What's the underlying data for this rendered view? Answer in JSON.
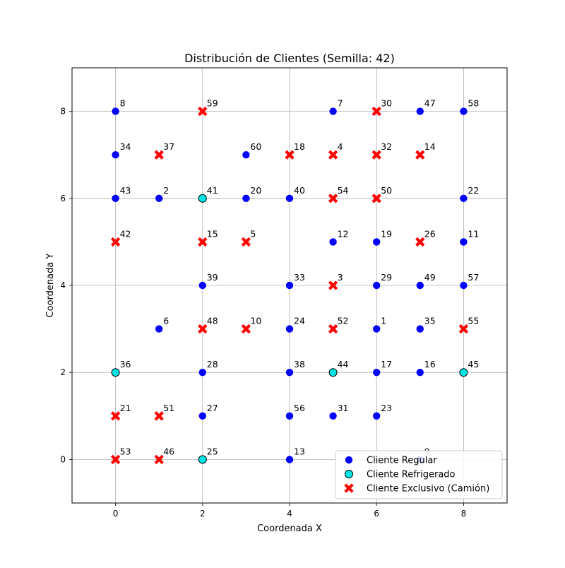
{
  "chart_data": {
    "type": "scatter",
    "title": "Distribución de Clientes (Semilla: 42)",
    "xlabel": "Coordenada X",
    "ylabel": "Coordenada Y",
    "xlim": [
      -1,
      9
    ],
    "ylim": [
      -1,
      9
    ],
    "xticks": [
      "0",
      "2",
      "4",
      "6",
      "8"
    ],
    "yticks": [
      "0",
      "2",
      "4",
      "6",
      "8"
    ],
    "grid": true,
    "legend_position": "lower-right",
    "series": [
      {
        "name": "Cliente Regular",
        "marker": "circle",
        "color": "#0000ff",
        "points": [
          {
            "id": "1",
            "x": 6,
            "y": 3
          },
          {
            "id": "2",
            "x": 1,
            "y": 6
          },
          {
            "id": "6",
            "x": 1,
            "y": 3
          },
          {
            "id": "7",
            "x": 5,
            "y": 8
          },
          {
            "id": "8",
            "x": 0,
            "y": 8
          },
          {
            "id": "9",
            "x": 7,
            "y": 0
          },
          {
            "id": "11",
            "x": 8,
            "y": 5
          },
          {
            "id": "12",
            "x": 5,
            "y": 5
          },
          {
            "id": "13",
            "x": 4,
            "y": 0
          },
          {
            "id": "16",
            "x": 7,
            "y": 2
          },
          {
            "id": "17",
            "x": 6,
            "y": 2
          },
          {
            "id": "19",
            "x": 6,
            "y": 5
          },
          {
            "id": "20",
            "x": 3,
            "y": 6
          },
          {
            "id": "22",
            "x": 8,
            "y": 6
          },
          {
            "id": "23",
            "x": 6,
            "y": 1
          },
          {
            "id": "24",
            "x": 4,
            "y": 3
          },
          {
            "id": "27",
            "x": 2,
            "y": 1
          },
          {
            "id": "28",
            "x": 2,
            "y": 2
          },
          {
            "id": "29",
            "x": 6,
            "y": 4
          },
          {
            "id": "31",
            "x": 5,
            "y": 1
          },
          {
            "id": "33",
            "x": 4,
            "y": 4
          },
          {
            "id": "34",
            "x": 0,
            "y": 7
          },
          {
            "id": "35",
            "x": 7,
            "y": 3
          },
          {
            "id": "38",
            "x": 4,
            "y": 2
          },
          {
            "id": "39",
            "x": 2,
            "y": 4
          },
          {
            "id": "40",
            "x": 4,
            "y": 6
          },
          {
            "id": "43",
            "x": 0,
            "y": 6
          },
          {
            "id": "47",
            "x": 7,
            "y": 8
          },
          {
            "id": "49",
            "x": 7,
            "y": 4
          },
          {
            "id": "56",
            "x": 4,
            "y": 1
          },
          {
            "id": "57",
            "x": 8,
            "y": 4
          },
          {
            "id": "58",
            "x": 8,
            "y": 8
          },
          {
            "id": "60",
            "x": 3,
            "y": 7
          }
        ]
      },
      {
        "name": "Cliente Refrigerado",
        "marker": "circle-outlined",
        "color": "#00e5e5",
        "points": [
          {
            "id": "25",
            "x": 2,
            "y": 0
          },
          {
            "id": "36",
            "x": 0,
            "y": 2
          },
          {
            "id": "41",
            "x": 2,
            "y": 6
          },
          {
            "id": "44",
            "x": 5,
            "y": 2
          },
          {
            "id": "45",
            "x": 8,
            "y": 2
          }
        ]
      },
      {
        "name": "Cliente Exclusivo (Camión)",
        "marker": "x",
        "color": "#ff0000",
        "points": [
          {
            "id": "3",
            "x": 5,
            "y": 4
          },
          {
            "id": "4",
            "x": 5,
            "y": 7
          },
          {
            "id": "5",
            "x": 3,
            "y": 5
          },
          {
            "id": "10",
            "x": 3,
            "y": 3
          },
          {
            "id": "14",
            "x": 7,
            "y": 7
          },
          {
            "id": "15",
            "x": 2,
            "y": 5
          },
          {
            "id": "18",
            "x": 4,
            "y": 7
          },
          {
            "id": "21",
            "x": 0,
            "y": 1
          },
          {
            "id": "26",
            "x": 7,
            "y": 5
          },
          {
            "id": "30",
            "x": 6,
            "y": 8
          },
          {
            "id": "32",
            "x": 6,
            "y": 7
          },
          {
            "id": "37",
            "x": 1,
            "y": 7
          },
          {
            "id": "42",
            "x": 0,
            "y": 5
          },
          {
            "id": "46",
            "x": 1,
            "y": 0
          },
          {
            "id": "48",
            "x": 2,
            "y": 3
          },
          {
            "id": "50",
            "x": 6,
            "y": 6
          },
          {
            "id": "51",
            "x": 1,
            "y": 1
          },
          {
            "id": "52",
            "x": 5,
            "y": 3
          },
          {
            "id": "53",
            "x": 0,
            "y": 0
          },
          {
            "id": "54",
            "x": 5,
            "y": 6
          },
          {
            "id": "55",
            "x": 8,
            "y": 3
          },
          {
            "id": "59",
            "x": 2,
            "y": 8
          }
        ]
      }
    ]
  }
}
